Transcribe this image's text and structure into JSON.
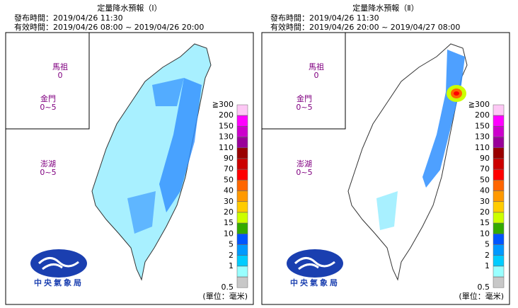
{
  "panels": [
    {
      "title": "定量降水預報（Ⅰ）",
      "issued": "發布時間：2019/04/26 11:30",
      "valid": "有效時間：2019/04/26 08:00 ~ 2019/04/26 20:00",
      "islands": [
        {
          "name": "馬祖",
          "value": "0"
        },
        {
          "name": "金門",
          "value": "0~5"
        },
        {
          "name": "澎湖",
          "value": "0~5"
        }
      ]
    },
    {
      "title": "定量降水預報（Ⅱ）",
      "issued": "發布時間：2019/04/26 11:30",
      "valid": "有效時間：2019/04/26 20:00 ~ 2019/04/27 08:00",
      "islands": [
        {
          "name": "馬祖",
          "value": "0"
        },
        {
          "name": "金門",
          "value": "0~5"
        },
        {
          "name": "澎湖",
          "value": "0~5"
        }
      ]
    }
  ],
  "legend": {
    "unit": "(單位：毫米)",
    "levels": [
      {
        "label": "≧300",
        "color": "#fdc8f5"
      },
      {
        "label": "200",
        "color": "#ff00ff"
      },
      {
        "label": "150",
        "color": "#cc00cc"
      },
      {
        "label": "130",
        "color": "#990099"
      },
      {
        "label": "110",
        "color": "#990000"
      },
      {
        "label": "90",
        "color": "#cc0000"
      },
      {
        "label": "70",
        "color": "#ff0000"
      },
      {
        "label": "50",
        "color": "#ff6600"
      },
      {
        "label": "40",
        "color": "#ff9900"
      },
      {
        "label": "30",
        "color": "#ffcc00"
      },
      {
        "label": "20",
        "color": "#ccff00"
      },
      {
        "label": "15",
        "color": "#33aa00"
      },
      {
        "label": "10",
        "color": "#0055ff"
      },
      {
        "label": "5",
        "color": "#0099ff"
      },
      {
        "label": "2",
        "color": "#00ccff"
      },
      {
        "label": "1",
        "color": "#99ffff"
      },
      {
        "label": "0.5",
        "color": "#c8c8c8"
      }
    ]
  },
  "logo": "中央氣象局"
}
